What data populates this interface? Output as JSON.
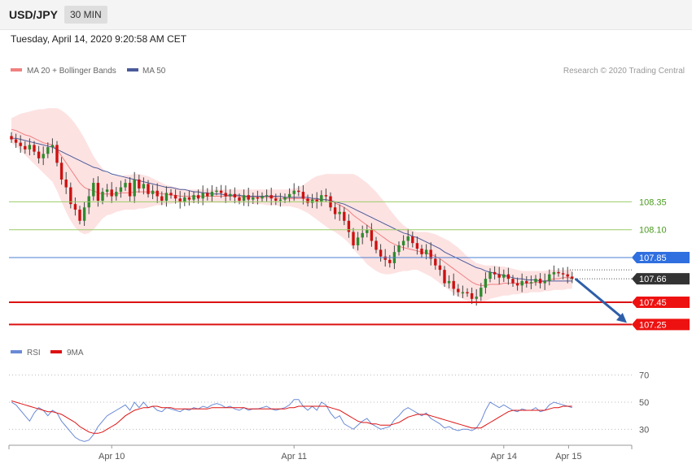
{
  "header": {
    "pair": "USD/JPY",
    "timeframe": "30 MIN",
    "datetime": "Tuesday, April 14, 2020 9:20:58 AM CET"
  },
  "legend": {
    "ma20": "MA 20 + Bollinger Bands",
    "ma50": "MA 50",
    "credit": "Research © 2020 Trading Central"
  },
  "colors": {
    "ma20": "#f08080",
    "ma50": "#4a5a9a",
    "band_fill": "#fde2e2",
    "candle_up": "#2e8b2e",
    "candle_down": "#cc1111",
    "resistance": "#99cc66",
    "pivot": "#4a7fd0",
    "support": "#dd1111",
    "current": "#333333",
    "arrow": "#2e5ea8",
    "rsi": "#6a8ad6",
    "rsi_ma": "#dd1111"
  },
  "chart_data": [
    {
      "type": "candlestick",
      "x_labels": [
        "Apr 10",
        "Apr 11",
        "Apr 14",
        "Apr 15"
      ],
      "ylim": [
        107.1,
        109.3
      ],
      "price_levels": [
        {
          "value": 108.35,
          "label": "108.35",
          "kind": "resistance"
        },
        {
          "value": 108.1,
          "label": "108.10",
          "kind": "resistance"
        },
        {
          "value": 107.85,
          "label": "107.85",
          "kind": "pivot"
        },
        {
          "value": 107.66,
          "label": "107.66",
          "kind": "current"
        },
        {
          "value": 107.45,
          "label": "107.45",
          "kind": "support"
        },
        {
          "value": 107.25,
          "label": "107.25",
          "kind": "support"
        }
      ],
      "close_path": [
        108.91,
        108.88,
        108.85,
        108.82,
        108.86,
        108.8,
        108.74,
        108.78,
        108.84,
        108.86,
        108.7,
        108.55,
        108.48,
        108.33,
        108.28,
        108.18,
        108.3,
        108.4,
        108.52,
        108.36,
        108.44,
        108.46,
        108.4,
        108.44,
        108.48,
        108.52,
        108.4,
        108.55,
        108.47,
        108.51,
        108.42,
        108.45,
        108.4,
        108.36,
        108.43,
        108.41,
        108.38,
        108.35,
        108.39,
        108.37,
        108.41,
        108.38,
        108.43,
        108.4,
        108.44,
        108.45,
        108.43,
        108.4,
        108.42,
        108.39,
        108.36,
        108.41,
        108.37,
        108.39,
        108.38,
        108.4,
        108.41,
        108.38,
        108.36,
        108.37,
        108.39,
        108.42,
        108.45,
        108.44,
        108.38,
        108.34,
        108.37,
        108.35,
        108.41,
        108.4,
        108.3,
        108.24,
        108.26,
        108.18,
        108.08,
        107.96,
        108.03,
        108.07,
        108.1,
        108.0,
        107.92,
        107.86,
        107.83,
        107.8,
        107.9,
        107.96,
        108.0,
        108.04,
        107.98,
        107.93,
        107.88,
        107.92,
        107.84,
        107.78,
        107.74,
        107.62,
        107.64,
        107.57,
        107.54,
        107.54,
        107.53,
        107.48,
        107.5,
        107.58,
        107.66,
        107.72,
        107.7,
        107.67,
        107.7,
        107.66,
        107.62,
        107.6,
        107.64,
        107.62,
        107.63,
        107.66,
        107.62,
        107.64,
        107.7,
        107.72,
        107.71,
        107.7,
        107.68,
        107.66
      ],
      "ma20": [
        109.0,
        108.99,
        108.97,
        108.95,
        108.94,
        108.92,
        108.9,
        108.88,
        108.87,
        108.86,
        108.82,
        108.76,
        108.7,
        108.64,
        108.58,
        108.52,
        108.48,
        108.46,
        108.45,
        108.43,
        108.42,
        108.42,
        108.42,
        108.42,
        108.43,
        108.43,
        108.43,
        108.44,
        108.44,
        108.44,
        108.44,
        108.44,
        108.43,
        108.42,
        108.42,
        108.41,
        108.41,
        108.4,
        108.4,
        108.4,
        108.4,
        108.4,
        108.4,
        108.4,
        108.4,
        108.4,
        108.4,
        108.4,
        108.4,
        108.4,
        108.4,
        108.39,
        108.39,
        108.39,
        108.39,
        108.39,
        108.39,
        108.39,
        108.39,
        108.38,
        108.38,
        108.38,
        108.38,
        108.38,
        108.38,
        108.37,
        108.37,
        108.37,
        108.37,
        108.37,
        108.36,
        108.34,
        108.32,
        108.3,
        108.27,
        108.23,
        108.2,
        108.17,
        108.14,
        108.11,
        108.08,
        108.05,
        108.02,
        107.99,
        107.97,
        107.95,
        107.94,
        107.93,
        107.92,
        107.91,
        107.9,
        107.89,
        107.88,
        107.86,
        107.84,
        107.81,
        107.78,
        107.75,
        107.72,
        107.69,
        107.66,
        107.63,
        107.61,
        107.6,
        107.6,
        107.61,
        107.61,
        107.61,
        107.62,
        107.62,
        107.62,
        107.62,
        107.62,
        107.62,
        107.62,
        107.63,
        107.63,
        107.64,
        107.65,
        107.66,
        107.66,
        107.67,
        107.67,
        107.67
      ],
      "bb_upper": [
        109.1,
        109.12,
        109.14,
        109.15,
        109.16,
        109.17,
        109.18,
        109.18,
        109.19,
        109.19,
        109.19,
        109.17,
        109.14,
        109.1,
        109.05,
        108.99,
        108.92,
        108.84,
        108.76,
        108.7,
        108.65,
        108.61,
        108.59,
        108.58,
        108.58,
        108.59,
        108.59,
        108.6,
        108.6,
        108.59,
        108.58,
        108.56,
        108.54,
        108.52,
        108.5,
        108.49,
        108.48,
        108.47,
        108.46,
        108.46,
        108.46,
        108.46,
        108.46,
        108.46,
        108.46,
        108.46,
        108.46,
        108.46,
        108.46,
        108.46,
        108.46,
        108.46,
        108.46,
        108.46,
        108.46,
        108.46,
        108.46,
        108.46,
        108.46,
        108.46,
        108.46,
        108.46,
        108.47,
        108.48,
        108.5,
        108.53,
        108.56,
        108.58,
        108.59,
        108.6,
        108.6,
        108.6,
        108.6,
        108.6,
        108.6,
        108.6,
        108.58,
        108.55,
        108.52,
        108.48,
        108.44,
        108.39,
        108.34,
        108.28,
        108.23,
        108.18,
        108.14,
        108.11,
        108.09,
        108.08,
        108.08,
        108.08,
        108.07,
        108.06,
        108.04,
        108.02,
        108.0,
        107.97,
        107.94,
        107.9,
        107.86,
        107.83,
        107.8,
        107.79,
        107.78,
        107.78,
        107.78,
        107.77,
        107.77,
        107.76,
        107.75,
        107.74,
        107.73,
        107.73,
        107.73,
        107.73,
        107.73,
        107.73,
        107.74,
        107.74,
        107.74,
        107.74,
        107.74,
        107.74
      ],
      "bb_lower": [
        108.88,
        108.85,
        108.81,
        108.77,
        108.73,
        108.69,
        108.65,
        108.61,
        108.57,
        108.53,
        108.45,
        108.35,
        108.26,
        108.18,
        108.12,
        108.08,
        108.06,
        108.07,
        108.1,
        108.15,
        108.2,
        108.23,
        108.24,
        108.26,
        108.27,
        108.28,
        108.28,
        108.28,
        108.29,
        108.29,
        108.3,
        108.31,
        108.32,
        108.32,
        108.33,
        108.33,
        108.34,
        108.34,
        108.34,
        108.34,
        108.34,
        108.34,
        108.34,
        108.34,
        108.34,
        108.34,
        108.34,
        108.34,
        108.34,
        108.34,
        108.34,
        108.34,
        108.34,
        108.33,
        108.33,
        108.33,
        108.32,
        108.32,
        108.32,
        108.31,
        108.31,
        108.31,
        108.3,
        108.29,
        108.27,
        108.25,
        108.22,
        108.19,
        108.16,
        108.13,
        108.1,
        108.08,
        108.05,
        108.02,
        107.98,
        107.93,
        107.88,
        107.84,
        107.79,
        107.76,
        107.73,
        107.71,
        107.7,
        107.7,
        107.71,
        107.72,
        107.73,
        107.73,
        107.74,
        107.74,
        107.72,
        107.7,
        107.68,
        107.65,
        107.62,
        107.59,
        107.56,
        107.53,
        107.5,
        107.48,
        107.46,
        107.45,
        107.44,
        107.44,
        107.46,
        107.48,
        107.49,
        107.5,
        107.51,
        107.51,
        107.52,
        107.52,
        107.53,
        107.53,
        107.54,
        107.54,
        107.54,
        107.55,
        107.55,
        107.56,
        107.56,
        107.56,
        107.57,
        107.57
      ],
      "ma50": [
        108.92,
        108.92,
        108.91,
        108.9,
        108.89,
        108.88,
        108.87,
        108.86,
        108.85,
        108.84,
        108.82,
        108.8,
        108.78,
        108.76,
        108.74,
        108.72,
        108.7,
        108.68,
        108.66,
        108.65,
        108.63,
        108.62,
        108.6,
        108.59,
        108.58,
        108.57,
        108.56,
        108.55,
        108.54,
        108.53,
        108.52,
        108.51,
        108.5,
        108.49,
        108.48,
        108.48,
        108.47,
        108.46,
        108.46,
        108.45,
        108.44,
        108.44,
        108.43,
        108.43,
        108.42,
        108.42,
        108.42,
        108.41,
        108.41,
        108.41,
        108.41,
        108.4,
        108.4,
        108.4,
        108.4,
        108.4,
        108.4,
        108.4,
        108.4,
        108.4,
        108.39,
        108.39,
        108.39,
        108.39,
        108.39,
        108.39,
        108.38,
        108.38,
        108.37,
        108.37,
        108.36,
        108.35,
        108.34,
        108.33,
        108.31,
        108.29,
        108.27,
        108.25,
        108.23,
        108.21,
        108.19,
        108.17,
        108.15,
        108.13,
        108.11,
        108.09,
        108.07,
        108.06,
        108.04,
        108.03,
        108.01,
        107.99,
        107.97,
        107.95,
        107.93,
        107.9,
        107.88,
        107.86,
        107.84,
        107.82,
        107.8,
        107.78,
        107.76,
        107.75,
        107.73,
        107.72,
        107.71,
        107.7,
        107.69,
        107.68,
        107.67,
        107.66,
        107.66,
        107.65,
        107.65,
        107.65,
        107.64,
        107.64,
        107.64,
        107.64,
        107.64,
        107.64,
        107.64,
        107.64
      ]
    },
    {
      "type": "line",
      "legend": [
        "RSI",
        "9MA"
      ],
      "ylim": [
        20,
        80
      ],
      "y_ticks": [
        70,
        50,
        30
      ],
      "rsi": [
        50,
        48,
        44,
        40,
        36,
        42,
        46,
        44,
        40,
        44,
        42,
        36,
        32,
        28,
        24,
        22,
        21,
        22,
        26,
        32,
        36,
        40,
        42,
        44,
        46,
        48,
        44,
        50,
        46,
        50,
        46,
        47,
        44,
        43,
        46,
        45,
        44,
        43,
        45,
        44,
        46,
        45,
        47,
        46,
        48,
        49,
        48,
        46,
        47,
        45,
        44,
        46,
        44,
        45,
        45,
        46,
        47,
        45,
        44,
        45,
        46,
        48,
        52,
        52,
        47,
        44,
        47,
        44,
        50,
        48,
        42,
        38,
        40,
        34,
        32,
        30,
        33,
        36,
        38,
        34,
        32,
        30,
        31,
        32,
        37,
        40,
        44,
        46,
        44,
        42,
        40,
        42,
        38,
        36,
        34,
        31,
        32,
        30,
        29,
        30,
        30,
        29,
        31,
        36,
        44,
        50,
        48,
        46,
        48,
        46,
        44,
        43,
        45,
        44,
        44,
        46,
        43,
        44,
        48,
        50,
        49,
        48,
        47,
        46
      ],
      "rsi_ma": [
        51,
        50,
        49,
        48,
        47,
        46,
        45,
        44,
        43,
        43,
        42,
        41,
        39,
        37,
        35,
        32,
        30,
        28,
        27,
        27,
        28,
        30,
        32,
        34,
        37,
        40,
        42,
        44,
        45,
        46,
        46,
        47,
        47,
        46,
        46,
        46,
        45,
        45,
        45,
        45,
        45,
        45,
        45,
        45,
        46,
        46,
        46,
        46,
        46,
        46,
        46,
        46,
        45,
        45,
        45,
        45,
        45,
        45,
        45,
        45,
        45,
        46,
        46,
        47,
        47,
        47,
        47,
        47,
        47,
        47,
        46,
        45,
        44,
        42,
        40,
        38,
        36,
        35,
        35,
        34,
        34,
        33,
        33,
        33,
        34,
        35,
        37,
        39,
        40,
        41,
        41,
        41,
        40,
        39,
        38,
        37,
        36,
        35,
        34,
        33,
        32,
        31,
        31,
        31,
        33,
        35,
        37,
        39,
        41,
        43,
        44,
        44,
        44,
        44,
        44,
        44,
        44,
        44,
        45,
        46,
        46,
        47,
        47,
        47
      ]
    }
  ]
}
